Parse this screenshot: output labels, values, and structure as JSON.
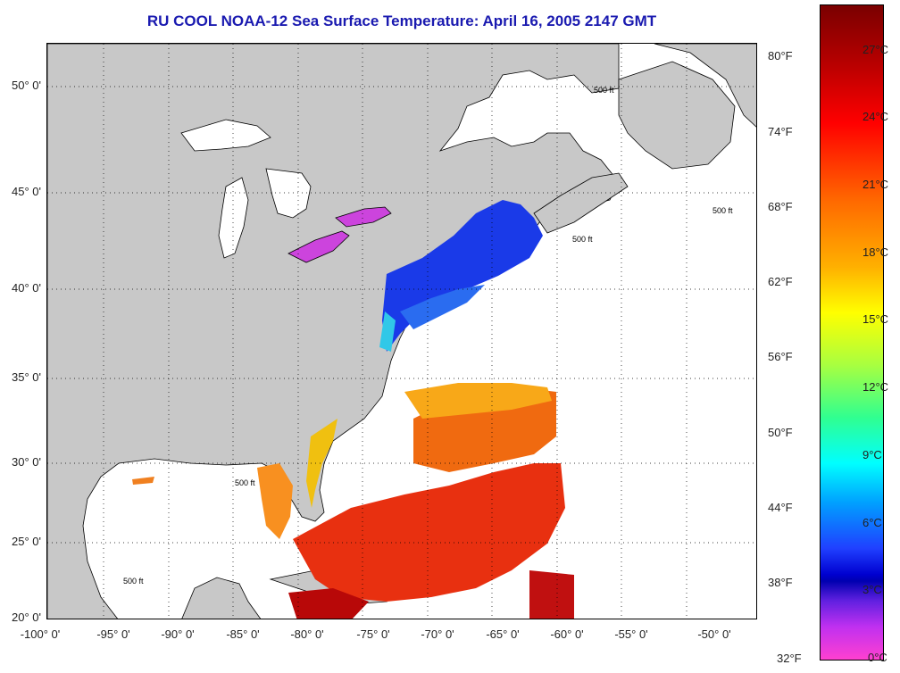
{
  "title": "RU COOL  NOAA-12  Sea Surface Temperature:  April 16, 2005 2147 GMT",
  "latitude_labels": [
    "50° 0'",
    "45° 0'",
    "40° 0'",
    "35° 0'",
    "30° 0'",
    "25° 0'",
    "20° 0'"
  ],
  "longitude_labels": [
    "-100° 0'",
    "-95° 0'",
    "-90° 0'",
    "-85° 0'",
    "-80° 0'",
    "-75° 0'",
    "-70° 0'",
    "-65° 0'",
    "-60° 0'",
    "-55° 0'",
    "-50° 0'"
  ],
  "colorbar": {
    "fahrenheit_labels": [
      "80°F",
      "74°F",
      "68°F",
      "62°F",
      "56°F",
      "50°F",
      "44°F",
      "38°F",
      "32°F"
    ],
    "celsius_labels": [
      "27°C",
      "24°C",
      "21°C",
      "18°C",
      "15°C",
      "12°C",
      "9°C",
      "6°C",
      "3°C",
      "0°C"
    ]
  },
  "contour_label": "500 ft",
  "colors": {
    "title": "#1a1ab0",
    "land": "#c8c8c8",
    "no_data": "#ffffff",
    "grid": "#000000"
  }
}
